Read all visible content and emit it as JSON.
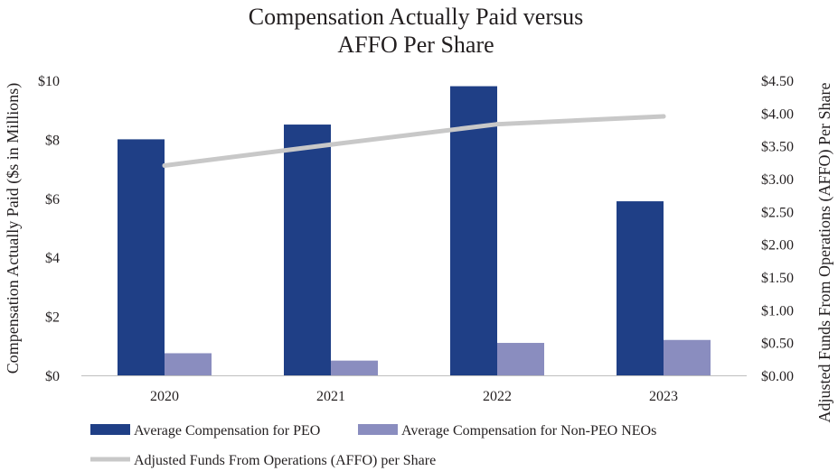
{
  "chart_data": {
    "type": "bar",
    "title_lines": [
      "Compensation Actually Paid versus",
      "AFFO Per Share"
    ],
    "categories": [
      "2020",
      "2021",
      "2022",
      "2023"
    ],
    "series": [
      {
        "name": "Average Compensation for PEO",
        "kind": "bar",
        "axis": "left",
        "color": "#1f3f86",
        "values": [
          8.0,
          8.5,
          9.8,
          5.9
        ]
      },
      {
        "name": "Average Compensation for Non-PEO NEOs",
        "kind": "bar",
        "axis": "left",
        "color": "#8a8dbf",
        "values": [
          0.75,
          0.5,
          1.1,
          1.2
        ]
      },
      {
        "name": "Adjusted Funds From Operations (AFFO) per Share",
        "kind": "line",
        "axis": "right",
        "color": "#c8c8c8",
        "values": [
          3.2,
          3.52,
          3.83,
          3.95
        ]
      }
    ],
    "ylabel": "Compensation Actually Paid ($s in Millions)",
    "y2label": "Adjusted Funds From Operations (AFFO) Per Share",
    "ylim": [
      0,
      10
    ],
    "y2lim": [
      0,
      4.5
    ],
    "yticks": [
      0,
      2,
      4,
      6,
      8,
      10
    ],
    "yticklabels": [
      "$0",
      "$2",
      "$4",
      "$6",
      "$8",
      "$10"
    ],
    "y2ticks": [
      0,
      0.5,
      1,
      1.5,
      2,
      2.5,
      3,
      3.5,
      4,
      4.5
    ],
    "y2ticklabels": [
      "$0.00",
      "$0.50",
      "$1.00",
      "$1.50",
      "$2.00",
      "$2.50",
      "$3.00",
      "$3.50",
      "$4.00",
      "$4.50"
    ],
    "grid": false,
    "legend_position": "bottom"
  }
}
